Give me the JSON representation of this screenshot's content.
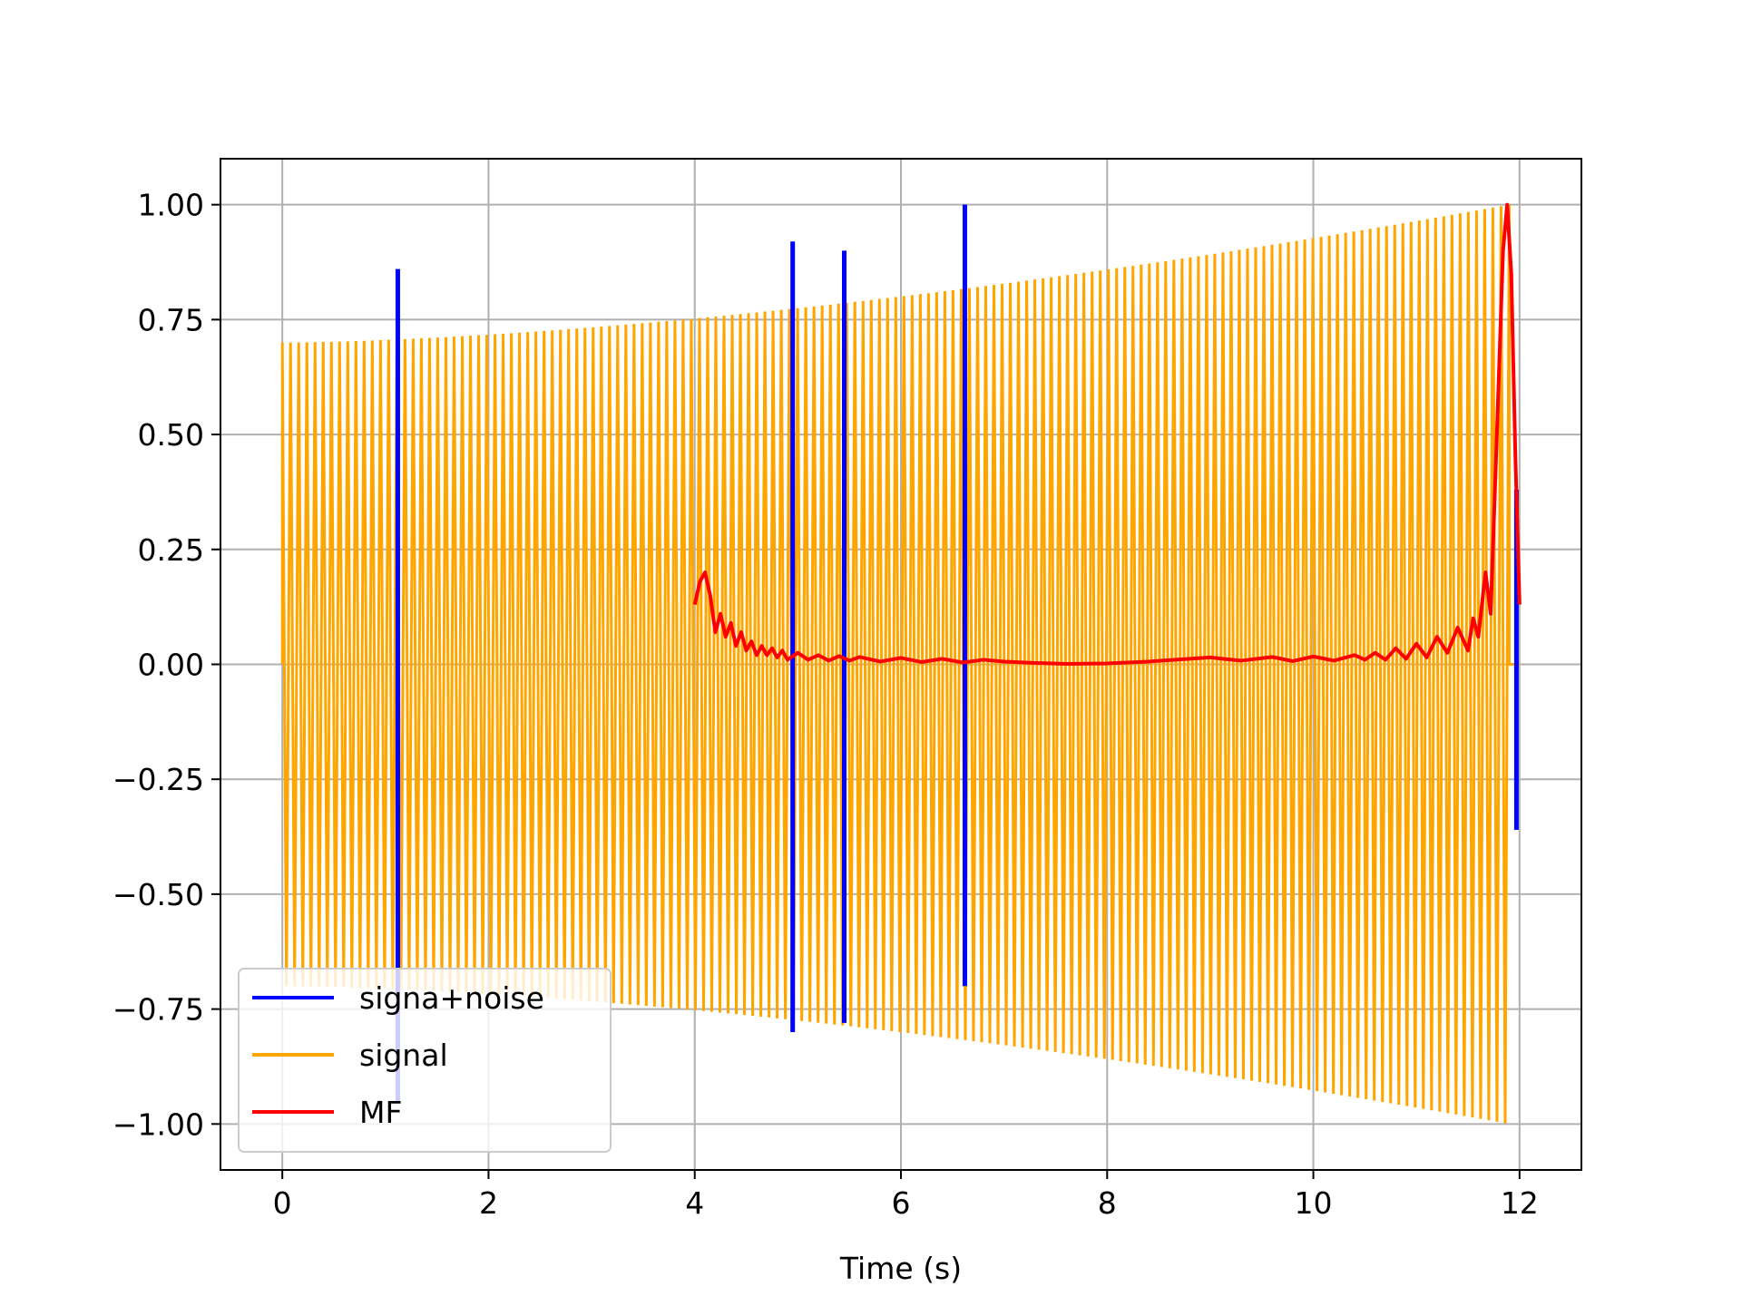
{
  "chart_data": {
    "type": "line",
    "title": "",
    "xlabel": "Time (s)",
    "ylabel": "",
    "xlim": [
      -0.6,
      12.6
    ],
    "ylim": [
      -1.1,
      1.1
    ],
    "xticks": [
      0,
      2,
      4,
      6,
      8,
      10,
      12
    ],
    "xtick_labels": [
      "0",
      "2",
      "4",
      "6",
      "8",
      "10",
      "12"
    ],
    "yticks": [
      1.0,
      0.75,
      0.5,
      0.25,
      0.0,
      -0.25,
      -0.5,
      -0.75,
      -1.0
    ],
    "ytick_labels": [
      "1.00",
      "0.75",
      "0.50",
      "0.25",
      "0.00",
      "−0.25",
      "−0.50",
      "−0.75",
      "−1.00"
    ],
    "grid": true,
    "legend_position": "lower-left",
    "series": [
      {
        "name": "signa+noise",
        "color": "#0000ff",
        "spikes": [
          {
            "x": 1.12,
            "ymin": -0.95,
            "ymax": 0.86
          },
          {
            "x": 4.95,
            "ymin": -0.8,
            "ymax": 0.92
          },
          {
            "x": 5.45,
            "ymin": -0.78,
            "ymax": 0.9
          },
          {
            "x": 6.62,
            "ymin": -0.7,
            "ymax": 1.0
          },
          {
            "x": 11.97,
            "ymin": -0.36,
            "ymax": 0.38
          }
        ]
      },
      {
        "name": "signal",
        "color": "#ffa500",
        "x_range": [
          0,
          11.9
        ],
        "amplitude_start": 0.7,
        "amplitude_end": 1.0
      },
      {
        "name": "MF",
        "color": "#ff0000",
        "points": [
          [
            4.0,
            0.13
          ],
          [
            4.05,
            0.18
          ],
          [
            4.1,
            0.2
          ],
          [
            4.15,
            0.15
          ],
          [
            4.2,
            0.07
          ],
          [
            4.25,
            0.11
          ],
          [
            4.3,
            0.06
          ],
          [
            4.35,
            0.09
          ],
          [
            4.4,
            0.04
          ],
          [
            4.45,
            0.07
          ],
          [
            4.5,
            0.03
          ],
          [
            4.55,
            0.05
          ],
          [
            4.6,
            0.02
          ],
          [
            4.65,
            0.04
          ],
          [
            4.7,
            0.02
          ],
          [
            4.75,
            0.035
          ],
          [
            4.8,
            0.015
          ],
          [
            4.85,
            0.03
          ],
          [
            4.9,
            0.01
          ],
          [
            5.0,
            0.025
          ],
          [
            5.1,
            0.01
          ],
          [
            5.2,
            0.02
          ],
          [
            5.3,
            0.008
          ],
          [
            5.4,
            0.018
          ],
          [
            5.5,
            0.008
          ],
          [
            5.6,
            0.016
          ],
          [
            5.8,
            0.006
          ],
          [
            6.0,
            0.014
          ],
          [
            6.2,
            0.005
          ],
          [
            6.4,
            0.012
          ],
          [
            6.6,
            0.004
          ],
          [
            6.8,
            0.01
          ],
          [
            7.0,
            0.006
          ],
          [
            7.3,
            0.003
          ],
          [
            7.6,
            0.001
          ],
          [
            8.0,
            0.002
          ],
          [
            8.4,
            0.006
          ],
          [
            8.8,
            0.012
          ],
          [
            9.0,
            0.015
          ],
          [
            9.3,
            0.008
          ],
          [
            9.6,
            0.016
          ],
          [
            9.8,
            0.007
          ],
          [
            10.0,
            0.017
          ],
          [
            10.2,
            0.008
          ],
          [
            10.4,
            0.02
          ],
          [
            10.5,
            0.01
          ],
          [
            10.6,
            0.025
          ],
          [
            10.7,
            0.01
          ],
          [
            10.8,
            0.035
          ],
          [
            10.9,
            0.012
          ],
          [
            11.0,
            0.045
          ],
          [
            11.1,
            0.015
          ],
          [
            11.2,
            0.06
          ],
          [
            11.3,
            0.025
          ],
          [
            11.4,
            0.08
          ],
          [
            11.5,
            0.03
          ],
          [
            11.55,
            0.1
          ],
          [
            11.6,
            0.06
          ],
          [
            11.67,
            0.2
          ],
          [
            11.72,
            0.11
          ],
          [
            11.78,
            0.5
          ],
          [
            11.84,
            0.9
          ],
          [
            11.88,
            1.0
          ],
          [
            11.92,
            0.85
          ],
          [
            11.96,
            0.45
          ],
          [
            12.0,
            0.13
          ]
        ]
      }
    ]
  }
}
